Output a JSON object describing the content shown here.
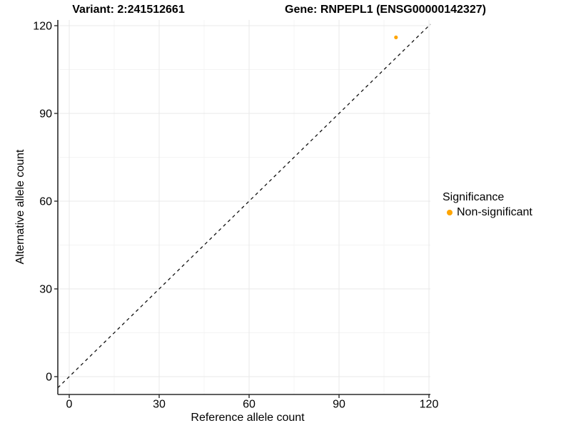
{
  "chart_data": {
    "type": "scatter",
    "title_left": "Variant: 2:241512661",
    "title_right": "Gene: RNPEPL1 (ENSG00000142327)",
    "xlabel": "Reference allele count",
    "ylabel": "Alternative allele count",
    "x_ticks": [
      0,
      30,
      60,
      90,
      120
    ],
    "y_ticks": [
      0,
      30,
      60,
      90,
      120
    ],
    "x_minor_ticks": [
      15,
      45,
      75,
      105
    ],
    "y_minor_ticks": [
      15,
      45,
      75,
      105
    ],
    "xlim": [
      -4,
      120.5
    ],
    "ylim": [
      -6,
      122
    ],
    "grid": true,
    "legend_position": "right",
    "reference_line": {
      "type": "identity",
      "equation": "y = x",
      "slope": 1,
      "intercept": 0,
      "style": "dashed",
      "color": "#111111"
    },
    "series": [
      {
        "name": "Non-significant",
        "color": "#FFA500",
        "points": [
          {
            "x": 109,
            "y": 116
          }
        ]
      }
    ],
    "legend": {
      "title": "Significance",
      "entries": [
        {
          "label": "Non-significant",
          "color": "#FFA500"
        }
      ]
    },
    "colors": {
      "grid_major": "#E9E9E9",
      "grid_minor": "#F4F4F4",
      "axis": "#2B2B2B",
      "tick": "#2B2B2B",
      "text": "#000000",
      "background": "#FFFFFF"
    }
  }
}
